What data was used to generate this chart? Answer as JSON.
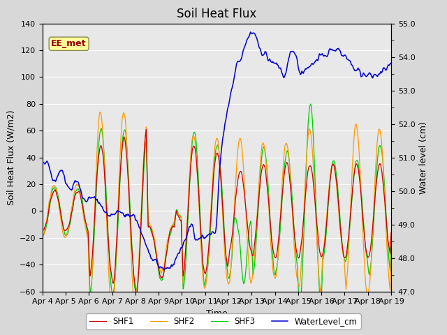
{
  "title": "Soil Heat Flux",
  "xlabel": "Time",
  "ylabel_left": "Soil Heat Flux (W/m2)",
  "ylabel_right": "Water level (cm)",
  "ylim_left": [
    -60,
    140
  ],
  "ylim_right": [
    47.0,
    55.0
  ],
  "yticks_left": [
    -60,
    -40,
    -20,
    0,
    20,
    40,
    60,
    80,
    100,
    120,
    140
  ],
  "yticks_right": [
    47.0,
    48.0,
    49.0,
    50.0,
    51.0,
    52.0,
    53.0,
    54.0,
    55.0
  ],
  "xtick_labels": [
    "Apr 4",
    "Apr 5",
    "Apr 6",
    "Apr 7",
    "Apr 8",
    "Apr 9",
    "Apr 10",
    "Apr 11",
    "Apr 12",
    "Apr 13",
    "Apr 14",
    "Apr 15",
    "Apr 16",
    "Apr 17",
    "Apr 18",
    "Apr 19"
  ],
  "legend_labels": [
    "SHF1",
    "SHF2",
    "SHF3",
    "WaterLevel_cm"
  ],
  "legend_colors": [
    "#cc0000",
    "#ff9900",
    "#00cc00",
    "#0000cc"
  ],
  "annotation_text": "EE_met",
  "annotation_color": "#990000",
  "annotation_bg": "#ffff99",
  "bg_color": "#e8e8e8",
  "grid_color": "#ffffff",
  "title_fontsize": 12,
  "tick_fontsize": 8,
  "label_fontsize": 9
}
